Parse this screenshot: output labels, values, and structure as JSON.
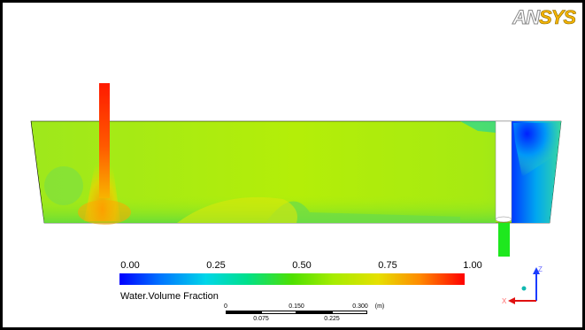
{
  "logo": {
    "part1": "AN",
    "part2": "SYS"
  },
  "legend": {
    "title": "Water.Volume Fraction",
    "ticks": [
      "0.00",
      "0.25",
      "0.50",
      "0.75",
      "1.00"
    ],
    "colors": [
      "#0000ff",
      "#00d6e8",
      "#4ee000",
      "#e6e000",
      "#ff0000"
    ]
  },
  "scale_bar": {
    "top_labels": [
      "0",
      "0.150",
      "0.300",
      "(m)"
    ],
    "bottom_labels": [
      "0.075",
      "0.225"
    ]
  },
  "axes": {
    "z": "Z",
    "x": "X"
  },
  "field_colors": {
    "bulk": "#a8ec10",
    "inlet_jet": "#ff2000",
    "outlet_pipe": "#1ee81e",
    "air_region": "#0046ff"
  }
}
